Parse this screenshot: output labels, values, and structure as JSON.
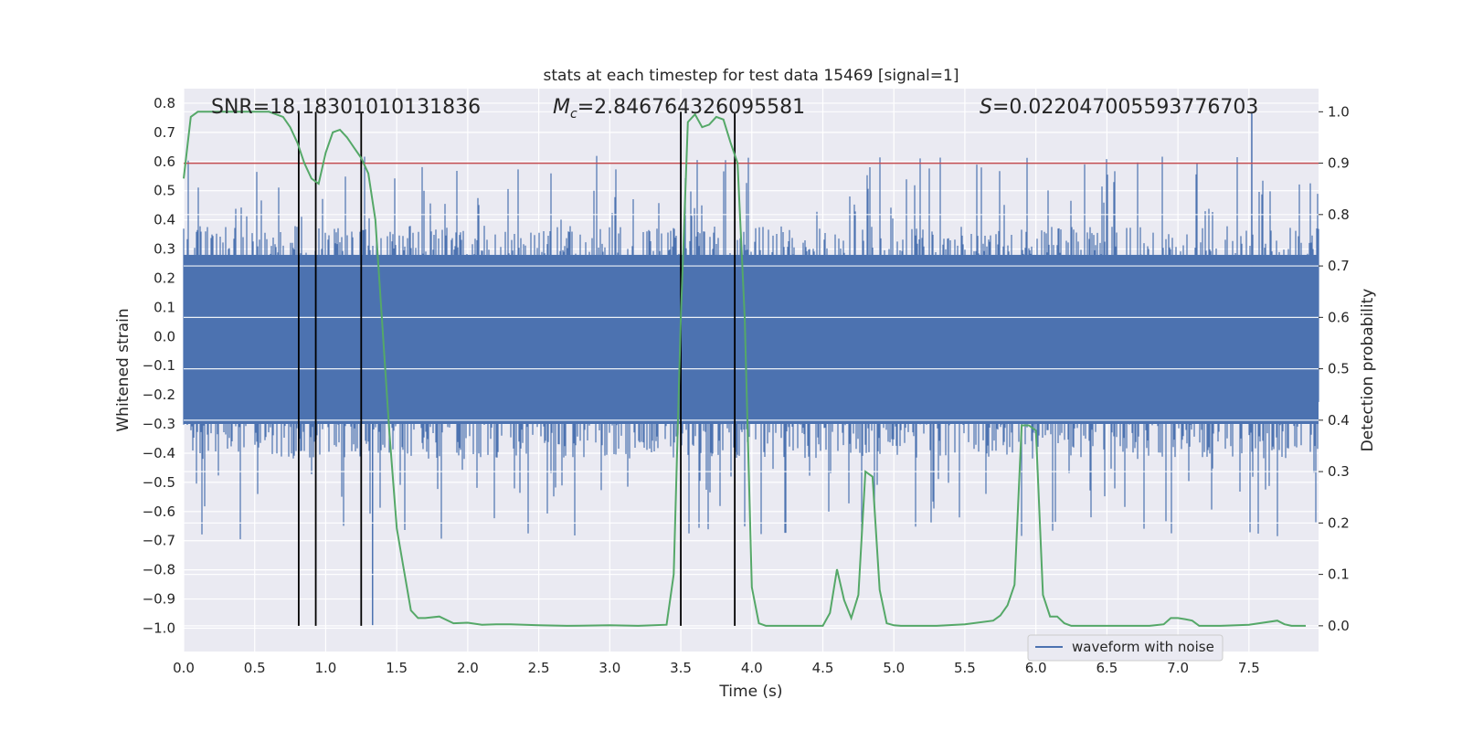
{
  "chart_data": {
    "type": "line",
    "title": "stats at each timestep for test data 15469 [signal=1]",
    "xlabel": "Time (s)",
    "ylabel_left": "Whitened strain",
    "ylabel_right": "Detection probability",
    "xlim": [
      0,
      7.99
    ],
    "ylim_left": [
      -1.08,
      0.85
    ],
    "ylim_right": [
      -0.05,
      1.045
    ],
    "x_ticks": [
      "0.0",
      "0.5",
      "1.0",
      "1.5",
      "2.0",
      "2.5",
      "3.0",
      "3.5",
      "4.0",
      "4.5",
      "5.0",
      "5.5",
      "6.0",
      "6.5",
      "7.0",
      "7.5"
    ],
    "y_ticks_left": [
      "0.8",
      "0.7",
      "0.6",
      "0.5",
      "0.4",
      "0.3",
      "0.2",
      "0.1",
      "0.0",
      "-0.1",
      "-0.2",
      "-0.3",
      "-0.4",
      "-0.5",
      "-0.6",
      "-0.7",
      "-0.8",
      "-0.9",
      "-1.0"
    ],
    "y_ticks_right": [
      "0.0",
      "0.1",
      "0.2",
      "0.3",
      "0.4",
      "0.5",
      "0.6",
      "0.7",
      "0.8",
      "0.9",
      "1.0"
    ],
    "grid": true,
    "legend_position": "lower-right",
    "annotations": {
      "snr": "SNR=18.18301010131836",
      "mc_symbol": "M",
      "mc_sub": "c",
      "mc_value": "=2.846764326095581",
      "s_symbol": "S",
      "s_value": "=0.022047005593776703"
    },
    "threshold_line": {
      "axis": "right",
      "value": 0.9,
      "color": "#c44e52"
    },
    "vertical_lines_x": [
      0.81,
      0.93,
      1.25,
      3.5,
      3.88
    ],
    "series": [
      {
        "name": "waveform with noise",
        "axis": "left",
        "color": "#4c72b0",
        "kind": "noise-band",
        "core_range": [
          -0.3,
          0.28
        ],
        "spike_max": [
          0.77,
          -0.99
        ]
      },
      {
        "axis": "right",
        "color": "#55a868",
        "x": [
          0.0,
          0.05,
          0.1,
          0.2,
          0.3,
          0.4,
          0.5,
          0.6,
          0.7,
          0.75,
          0.8,
          0.85,
          0.9,
          0.95,
          1.0,
          1.05,
          1.1,
          1.15,
          1.2,
          1.25,
          1.3,
          1.35,
          1.4,
          1.45,
          1.5,
          1.55,
          1.6,
          1.65,
          1.7,
          1.8,
          1.9,
          2.0,
          2.1,
          2.2,
          2.3,
          2.5,
          2.7,
          3.0,
          3.2,
          3.4,
          3.45,
          3.5,
          3.55,
          3.6,
          3.65,
          3.7,
          3.75,
          3.8,
          3.85,
          3.9,
          3.95,
          4.0,
          4.05,
          4.1,
          4.2,
          4.5,
          4.55,
          4.6,
          4.65,
          4.7,
          4.75,
          4.8,
          4.85,
          4.9,
          4.95,
          5.0,
          5.05,
          5.1,
          5.3,
          5.5,
          5.7,
          5.75,
          5.8,
          5.85,
          5.9,
          5.95,
          6.0,
          6.05,
          6.1,
          6.15,
          6.2,
          6.25,
          6.3,
          6.5,
          6.8,
          6.9,
          6.95,
          7.0,
          7.05,
          7.1,
          7.15,
          7.2,
          7.3,
          7.5,
          7.7,
          7.75,
          7.8,
          7.9
        ],
        "values": [
          0.87,
          0.99,
          1.0,
          1.0,
          1.0,
          1.0,
          1.0,
          1.0,
          0.99,
          0.97,
          0.94,
          0.9,
          0.87,
          0.86,
          0.92,
          0.96,
          0.965,
          0.95,
          0.93,
          0.91,
          0.88,
          0.79,
          0.58,
          0.37,
          0.19,
          0.11,
          0.03,
          0.015,
          0.015,
          0.018,
          0.005,
          0.006,
          0.002,
          0.003,
          0.003,
          0.001,
          0.0,
          0.001,
          0.0,
          0.002,
          0.1,
          0.6,
          0.98,
          0.995,
          0.97,
          0.975,
          0.99,
          0.985,
          0.94,
          0.9,
          0.6,
          0.075,
          0.005,
          0.0,
          0.0,
          0.0,
          0.025,
          0.11,
          0.05,
          0.015,
          0.06,
          0.3,
          0.29,
          0.07,
          0.005,
          0.001,
          0.0,
          0.0,
          0.0,
          0.003,
          0.01,
          0.02,
          0.04,
          0.08,
          0.39,
          0.39,
          0.38,
          0.06,
          0.018,
          0.018,
          0.005,
          0.0,
          0.0,
          0.0,
          0.0,
          0.003,
          0.015,
          0.015,
          0.013,
          0.01,
          0.0,
          0.0,
          0.0,
          0.002,
          0.01,
          0.003,
          0.0,
          0.0
        ]
      }
    ]
  }
}
